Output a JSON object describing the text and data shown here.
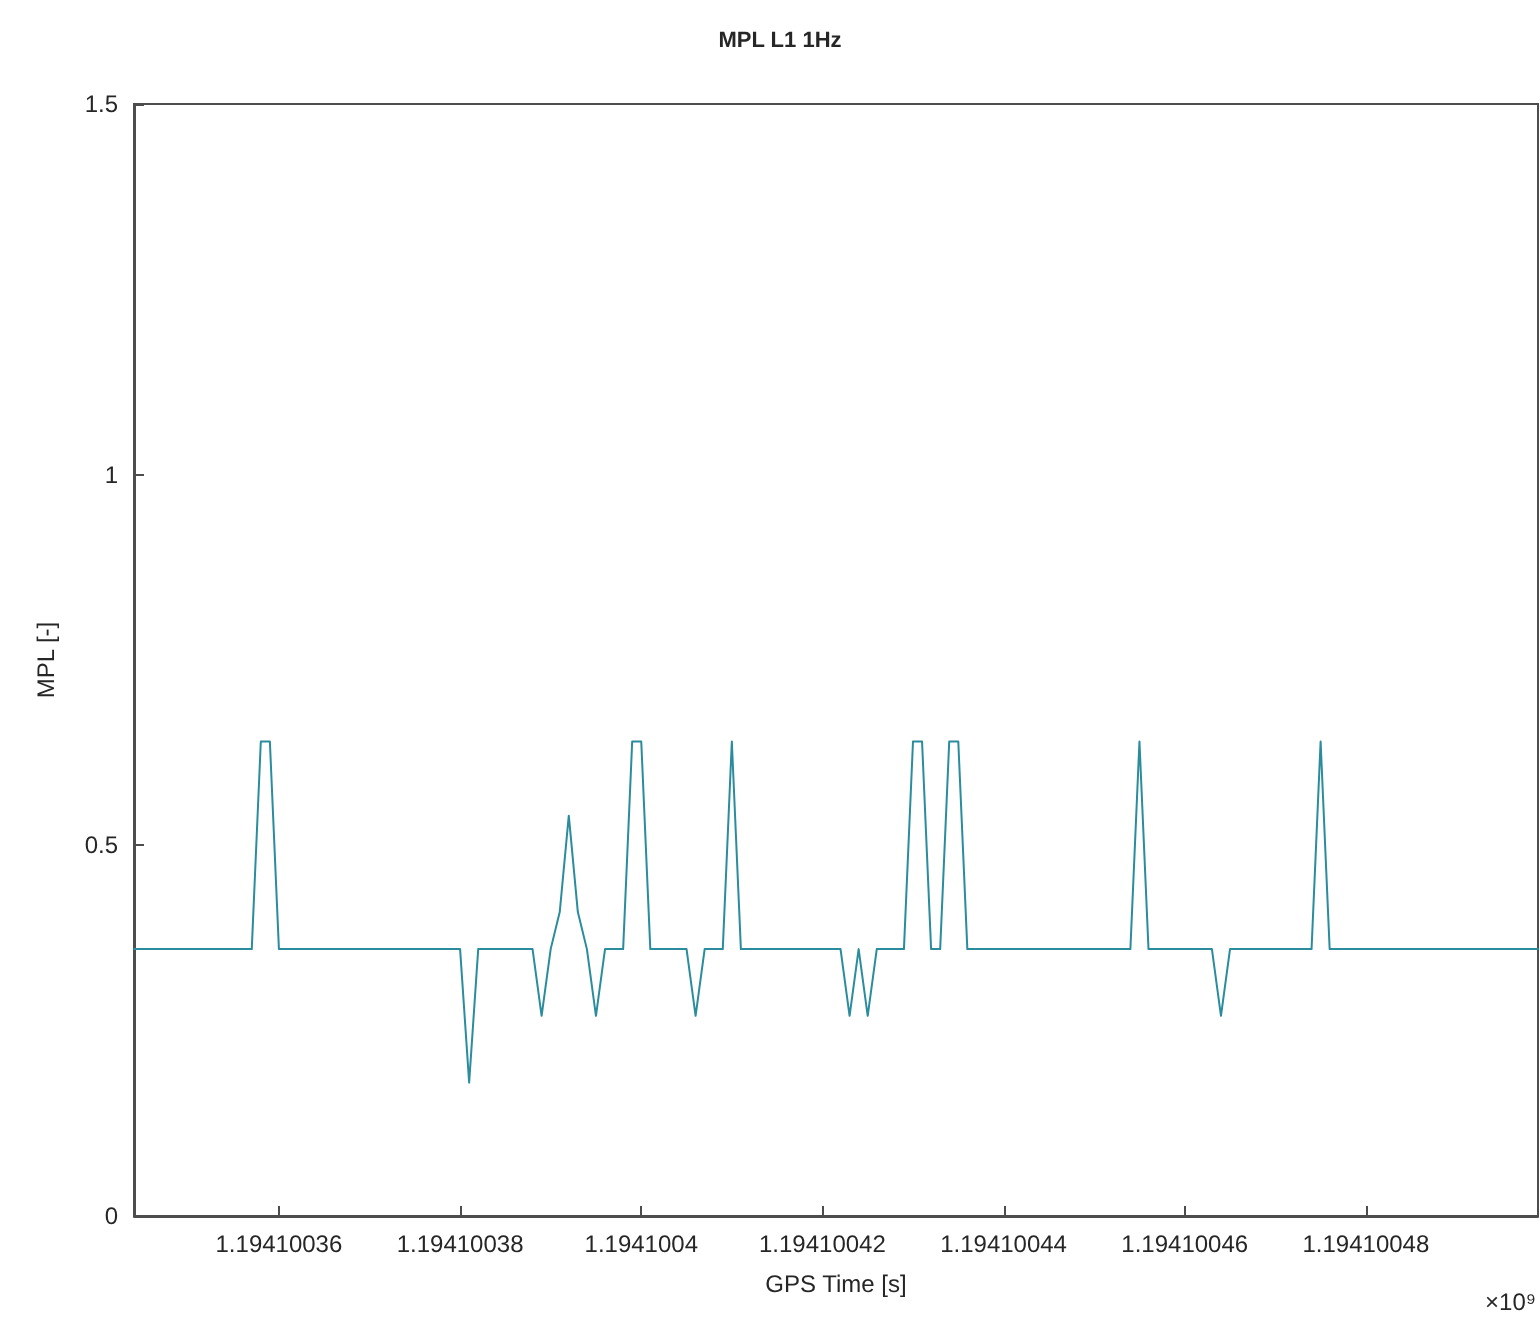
{
  "chart_data": {
    "type": "line",
    "title": "MPL L1 1Hz",
    "xlabel": "GPS Time [s]",
    "ylabel": "MPL [-]",
    "annotations": [
      "×10⁹"
    ],
    "x": [
      1.194100344,
      1.194100357,
      1.194100358,
      1.194100359,
      1.19410036,
      1.19410038,
      1.194100381,
      1.194100382,
      1.194100388,
      1.194100389,
      1.19410039,
      1.194100391,
      1.194100392,
      1.194100393,
      1.194100394,
      1.194100395,
      1.194100396,
      1.194100398,
      1.194100399,
      1.1941004,
      1.194100401,
      1.194100405,
      1.194100406,
      1.194100407,
      1.194100409,
      1.19410041,
      1.194100411,
      1.194100422,
      1.194100423,
      1.194100424,
      1.194100425,
      1.194100426,
      1.194100429,
      1.19410043,
      1.194100431,
      1.194100432,
      1.194100433,
      1.194100434,
      1.194100435,
      1.194100436,
      1.194100454,
      1.194100455,
      1.194100456,
      1.194100463,
      1.194100464,
      1.194100465,
      1.194100474,
      1.194100475,
      1.194100476,
      1.194100499
    ],
    "series": [
      {
        "color": "#2a8c9c",
        "values": [
          0.36,
          0.36,
          0.64,
          0.64,
          0.36,
          0.36,
          0.18,
          0.36,
          0.36,
          0.27,
          0.36,
          0.41,
          0.54,
          0.41,
          0.36,
          0.27,
          0.36,
          0.36,
          0.64,
          0.64,
          0.36,
          0.36,
          0.27,
          0.36,
          0.36,
          0.64,
          0.36,
          0.36,
          0.27,
          0.36,
          0.27,
          0.36,
          0.36,
          0.64,
          0.64,
          0.36,
          0.36,
          0.64,
          0.64,
          0.36,
          0.36,
          0.64,
          0.36,
          0.36,
          0.27,
          0.36,
          0.36,
          0.64,
          0.36,
          0.36
        ]
      }
    ],
    "xlim": [
      1.194100344,
      1.194100499
    ],
    "xticks": [
      1.19410036,
      1.19410038,
      1.1941004,
      1.19410042,
      1.19410044,
      1.19410046,
      1.19410048
    ],
    "ylim": [
      0,
      1.5
    ],
    "yticks": [
      0,
      0.5,
      1,
      1.5
    ],
    "grid": false,
    "marker": "none",
    "line_style": "solid"
  }
}
